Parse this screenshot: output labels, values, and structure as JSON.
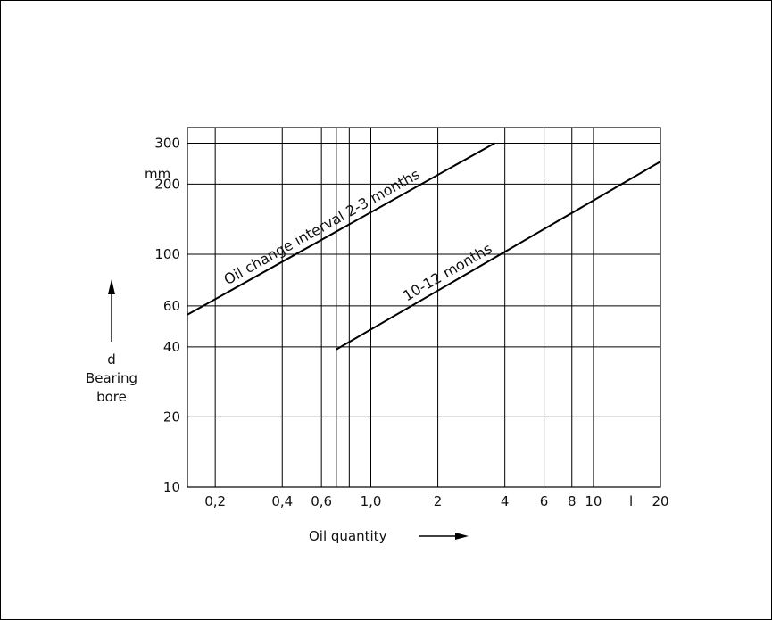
{
  "chart_data": {
    "type": "line",
    "x_scale": "log",
    "y_scale": "log",
    "xlim": [
      0.15,
      20
    ],
    "ylim": [
      10,
      350
    ],
    "x_ticks": [
      0.2,
      0.4,
      0.6,
      1.0,
      2,
      4,
      6,
      8,
      10,
      20
    ],
    "x_tick_labels": [
      "0,2",
      "0,4",
      "0,6",
      "1,0",
      "2",
      "4",
      "6",
      "8",
      "10",
      "20"
    ],
    "x_unit": "l",
    "x_extra_gridlines": [
      0.7,
      0.8
    ],
    "y_ticks": [
      10,
      20,
      40,
      60,
      100,
      200,
      300
    ],
    "y_tick_labels": [
      "10",
      "20",
      "40",
      "60",
      "100",
      "200",
      "300"
    ],
    "y_unit": "mm",
    "xlabel": "Oil quantity",
    "ylabel_symbol": "d",
    "ylabel_line1": "Bearing",
    "ylabel_line2": "bore",
    "grid": true,
    "series": [
      {
        "name": "Oil change interval 2-3 months",
        "x": [
          0.15,
          3.6
        ],
        "y": [
          55,
          300
        ]
      },
      {
        "name": "10-12 months",
        "x": [
          0.7,
          20
        ],
        "y": [
          39,
          250
        ]
      }
    ]
  }
}
